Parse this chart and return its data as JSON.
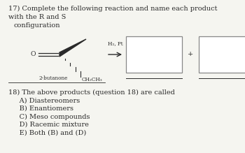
{
  "background_color": "#f5f5f0",
  "title_q17": "17) Complete the following reaction and name each product",
  "title_q17_line2": "with the R and S",
  "title_q17_line3": "    configuration",
  "reagent_label": "H₂, Pt",
  "reactant_label": "2-butanone",
  "reactant_substituent": "CH₂CH₃",
  "plus_sign": "+",
  "q18_line1": "18) The above products (question 18) are called",
  "q18_A": "     A) Diastereomers",
  "q18_B": "     B) Enantiomers",
  "q18_C": "     C) Meso compounds",
  "q18_D": "     D) Racemic mixture",
  "q18_E": "     E) Both (B) and (D)",
  "text_color": "#2a2a2a",
  "font_size_main": 7.0,
  "font_size_small": 5.2
}
